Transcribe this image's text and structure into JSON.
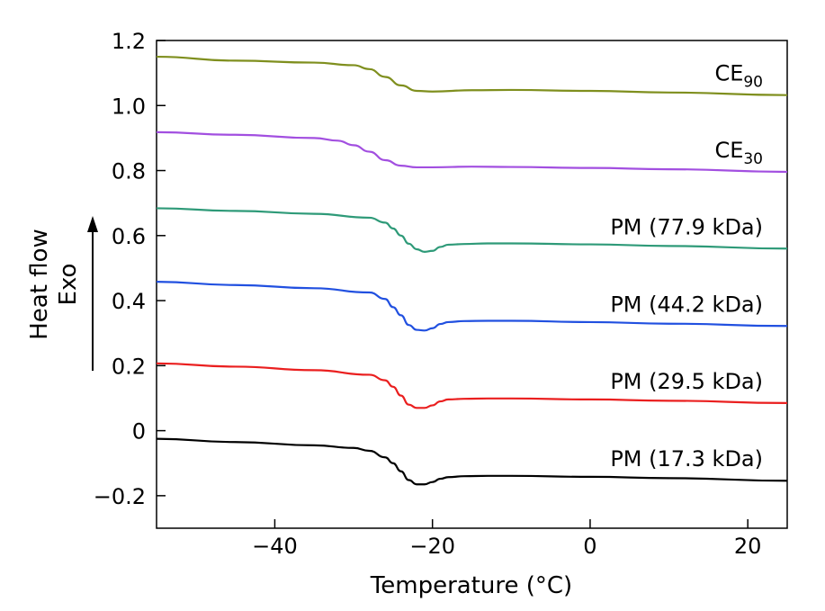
{
  "chart_data": {
    "type": "line",
    "xlabel": "Temperature (°C)",
    "ylabel_lines": [
      "Heat flow",
      "Exo"
    ],
    "xlim": [
      -55,
      25
    ],
    "ylim": [
      -0.3,
      1.2
    ],
    "xticks": [
      -40,
      -20,
      0,
      20
    ],
    "xtick_labels": [
      "−40",
      "−20",
      "0",
      "20"
    ],
    "yticks": [
      -0.2,
      0,
      0.2,
      0.4,
      0.6,
      0.8,
      1.0,
      1.2
    ],
    "ytick_labels": [
      "−0.2",
      "0",
      "0.2",
      "0.4",
      "0.6",
      "0.8",
      "1.0",
      "1.2"
    ],
    "grid": false,
    "series": [
      {
        "name": "CE90",
        "label_main": "CE",
        "label_sub": "90",
        "color": "#7f8f1e",
        "x": [
          -55,
          -45,
          -35,
          -30,
          -28,
          -26,
          -24,
          -22,
          -20,
          -15,
          -10,
          0,
          10,
          25
        ],
        "y": [
          1.15,
          1.138,
          1.132,
          1.124,
          1.112,
          1.088,
          1.062,
          1.045,
          1.043,
          1.047,
          1.048,
          1.045,
          1.04,
          1.032
        ]
      },
      {
        "name": "CE30",
        "label_main": "CE",
        "label_sub": "30",
        "color": "#a24fe0",
        "x": [
          -55,
          -45,
          -35,
          -32,
          -30,
          -28,
          -26,
          -24,
          -22,
          -20,
          -15,
          -10,
          0,
          10,
          25
        ],
        "y": [
          0.918,
          0.91,
          0.9,
          0.892,
          0.878,
          0.858,
          0.832,
          0.815,
          0.81,
          0.81,
          0.812,
          0.811,
          0.808,
          0.804,
          0.796
        ]
      },
      {
        "name": "PM (77.9 kDa)",
        "label_main": "PM (77.9 kDa)",
        "color": "#2e9a78",
        "x": [
          -55,
          -45,
          -35,
          -28,
          -26,
          -25,
          -24,
          -23,
          -22,
          -21,
          -20,
          -19,
          -18,
          -16,
          -13,
          -10,
          0,
          10,
          25
        ],
        "y": [
          0.684,
          0.676,
          0.667,
          0.655,
          0.64,
          0.622,
          0.6,
          0.575,
          0.558,
          0.55,
          0.553,
          0.565,
          0.572,
          0.574,
          0.576,
          0.576,
          0.573,
          0.568,
          0.56
        ]
      },
      {
        "name": "PM (44.2 kDa)",
        "label_main": "PM (44.2 kDa)",
        "color": "#2150e0",
        "x": [
          -55,
          -45,
          -35,
          -28,
          -26,
          -25,
          -24,
          -23,
          -22,
          -21,
          -20,
          -19,
          -18,
          -16,
          -13,
          -10,
          0,
          10,
          25
        ],
        "y": [
          0.458,
          0.448,
          0.438,
          0.425,
          0.405,
          0.38,
          0.355,
          0.325,
          0.31,
          0.308,
          0.315,
          0.328,
          0.334,
          0.337,
          0.338,
          0.338,
          0.334,
          0.329,
          0.322
        ]
      },
      {
        "name": "PM (29.5 kDa)",
        "label_main": "PM (29.5 kDa)",
        "color": "#ea1f1f",
        "x": [
          -55,
          -45,
          -35,
          -28,
          -26,
          -25,
          -24,
          -23,
          -22,
          -21,
          -20,
          -19,
          -18,
          -16,
          -13,
          -10,
          0,
          10,
          25
        ],
        "y": [
          0.207,
          0.197,
          0.186,
          0.172,
          0.155,
          0.135,
          0.108,
          0.08,
          0.07,
          0.07,
          0.078,
          0.09,
          0.096,
          0.098,
          0.099,
          0.099,
          0.096,
          0.092,
          0.085
        ]
      },
      {
        "name": "PM (17.3 kDa)",
        "label_main": "PM (17.3 kDa)",
        "color": "#000000",
        "x": [
          -55,
          -45,
          -35,
          -30,
          -28,
          -26,
          -25,
          -24,
          -23,
          -22,
          -21,
          -20,
          -19,
          -18,
          -16,
          -13,
          -10,
          0,
          10,
          25
        ],
        "y": [
          -0.025,
          -0.035,
          -0.045,
          -0.053,
          -0.062,
          -0.082,
          -0.1,
          -0.125,
          -0.152,
          -0.165,
          -0.165,
          -0.158,
          -0.148,
          -0.143,
          -0.14,
          -0.139,
          -0.139,
          -0.142,
          -0.146,
          -0.154
        ]
      }
    ]
  }
}
